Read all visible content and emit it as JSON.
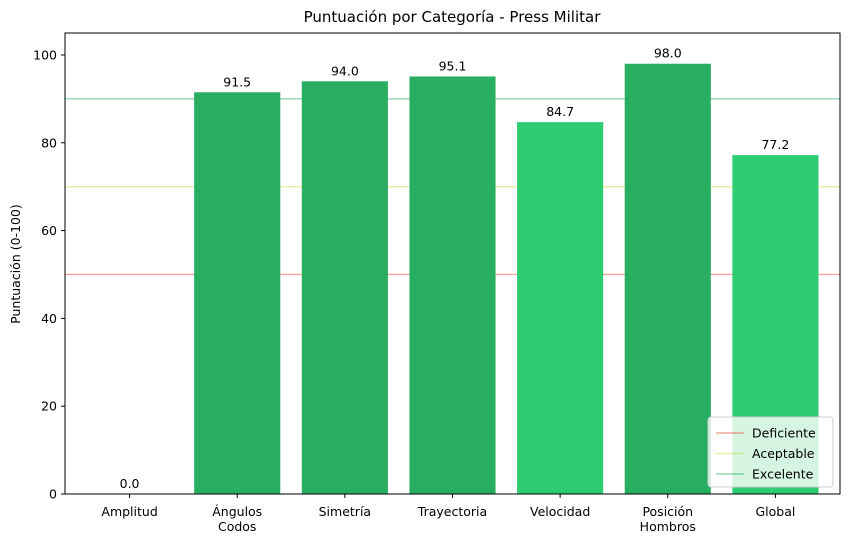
{
  "chart_data": {
    "type": "bar",
    "title": "Puntuación por Categoría - Press Militar",
    "xlabel": "",
    "ylabel": "Puntuación (0-100)",
    "ylim": [
      0,
      105
    ],
    "yticks": [
      0,
      20,
      40,
      60,
      80,
      100
    ],
    "categories": [
      [
        "Amplitud"
      ],
      [
        "Ángulos",
        "Codos"
      ],
      [
        "Simetría"
      ],
      [
        "Trayectoria"
      ],
      [
        "Velocidad"
      ],
      [
        "Posición",
        "Hombros"
      ],
      [
        "Global"
      ]
    ],
    "values": [
      0.0,
      91.5,
      94.0,
      95.1,
      84.7,
      98.0,
      77.2
    ],
    "value_labels": [
      "0.0",
      "91.5",
      "94.0",
      "95.1",
      "84.7",
      "98.0",
      "77.2"
    ],
    "bar_colors": [
      "#27ae60",
      "#27ae60",
      "#27ae60",
      "#27ae60",
      "#2ecc71",
      "#27ae60",
      "#2ecc71"
    ],
    "reference_lines": [
      {
        "name": "Deficiente",
        "value": 50,
        "color": "#e74c3c"
      },
      {
        "name": "Aceptable",
        "value": 70,
        "color": "#c8e04a"
      },
      {
        "name": "Excelente",
        "value": 90,
        "color": "#27ae60"
      }
    ],
    "legend_position": "bottom-right",
    "grid": false
  }
}
